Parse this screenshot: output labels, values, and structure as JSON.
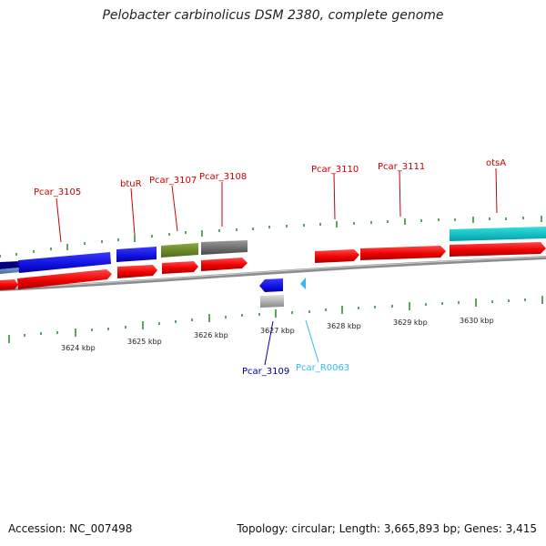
{
  "header": {
    "title": "Pelobacter carbinolicus DSM 2380, complete genome"
  },
  "footer": {
    "accession": "Accession: NC_007498",
    "topology": "Topology: circular; Length: 3,665,893 bp; Genes: 3,415"
  },
  "colors": {
    "forward_gene": "#ff0000",
    "reverse_gene": "#ff0000",
    "cds_blue": "#1f1fe6",
    "cds_olive": "#6b8e23",
    "cds_gray": "#707070",
    "cds_cyan": "#00cccc",
    "cds_dark_blue": "#000080",
    "light_gray_gene": "#c0c0c0",
    "trna_cyan": "#33bbee",
    "tick_green": "#228822",
    "backbone": "#888888",
    "label_red": "#cc0000",
    "label_navy": "#000099",
    "label_cyan": "#33bbee"
  },
  "ticks": [
    {
      "label": "3624 kbp"
    },
    {
      "label": "3625 kbp"
    },
    {
      "label": "3626 kbp"
    },
    {
      "label": "3627 kbp"
    },
    {
      "label": "3628 kbp"
    },
    {
      "label": "3629 kbp"
    },
    {
      "label": "3630 kbp"
    }
  ],
  "gene_labels": [
    {
      "name": "Pcar_3105",
      "color": "label_red"
    },
    {
      "name": "btuR",
      "color": "label_red"
    },
    {
      "name": "Pcar_3107",
      "color": "label_red"
    },
    {
      "name": "Pcar_3108",
      "color": "label_red"
    },
    {
      "name": "Pcar_3110",
      "color": "label_red"
    },
    {
      "name": "Pcar_3111",
      "color": "label_red"
    },
    {
      "name": "otsA",
      "color": "label_red"
    },
    {
      "name": "Pcar_3109",
      "color": "label_navy"
    },
    {
      "name": "Pcar_R0063",
      "color": "label_cyan"
    }
  ]
}
